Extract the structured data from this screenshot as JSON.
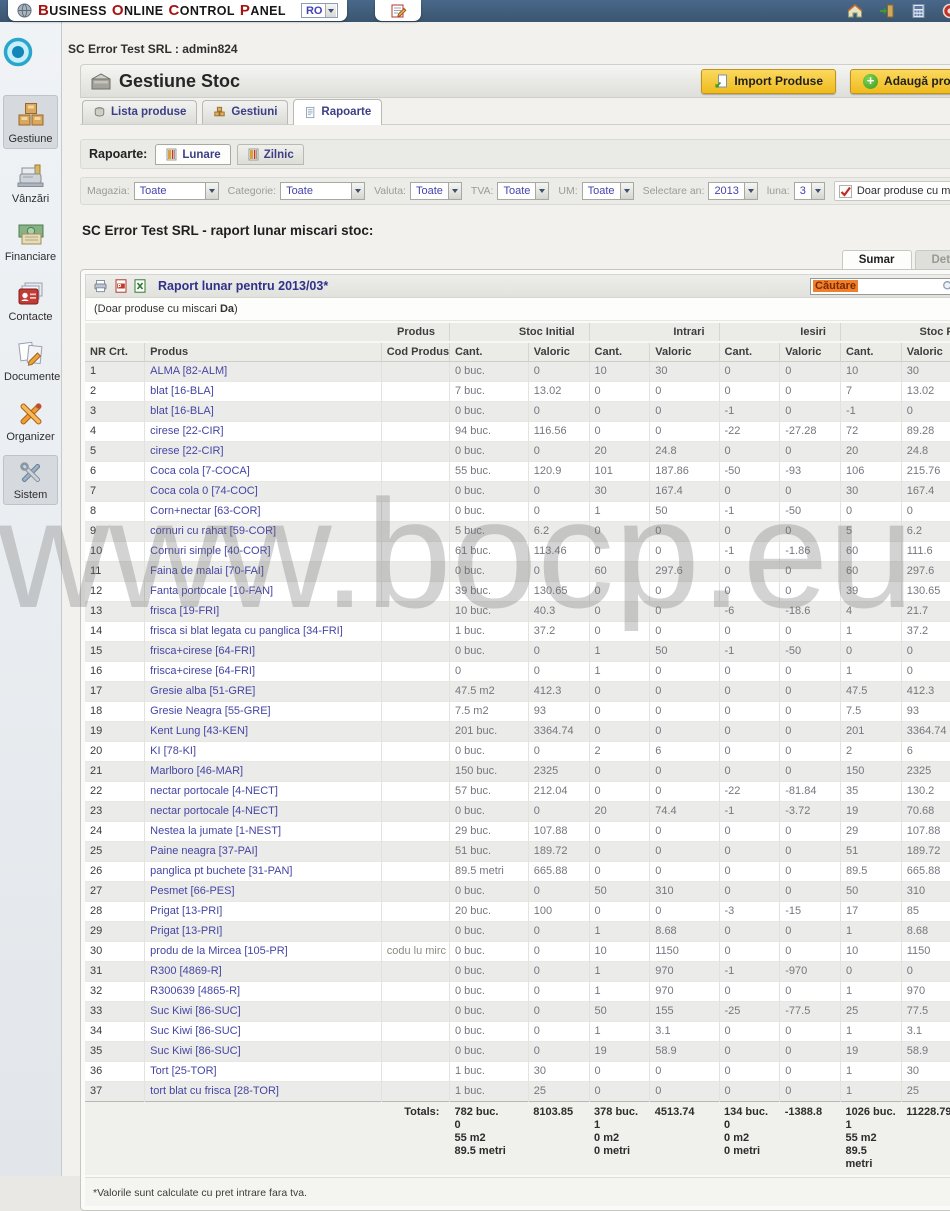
{
  "topbar": {
    "brand_words": [
      [
        "B",
        "USINESS"
      ],
      [
        "O",
        "NLINE"
      ],
      [
        "C",
        "ONTROL"
      ],
      [
        "P",
        "ANEL"
      ]
    ],
    "language": "RO",
    "icons_right": [
      "home-icon",
      "exit-icon",
      "calculator-icon",
      "power-icon"
    ]
  },
  "breadcrumb": {
    "text": "SC Error Test SRL : admin824"
  },
  "header": {
    "title": "Gestiune Stoc",
    "import_button": "Import Produse",
    "add_button": "Adaugă produs"
  },
  "tabs": [
    {
      "label": "Lista produse",
      "icon": "basket-icon",
      "active": false
    },
    {
      "label": "Gestiuni",
      "icon": "boxes-small-icon",
      "active": false
    },
    {
      "label": "Rapoarte",
      "icon": "report-doc-icon",
      "active": true
    }
  ],
  "reports_nav": {
    "label": "Rapoarte:",
    "tabs": [
      {
        "label": "Lunare",
        "icon": "report-book-icon",
        "active": true
      },
      {
        "label": "Zilnic",
        "icon": "report-book-icon",
        "active": false
      }
    ]
  },
  "filters": {
    "selects": [
      {
        "label": "Magazia:",
        "value": "Toate",
        "wide": true
      },
      {
        "label": "Categorie:",
        "value": "Toate",
        "wide": true
      },
      {
        "label": "Valuta:",
        "value": "Toate",
        "wide": false
      },
      {
        "label": "TVA:",
        "value": "Toate",
        "wide": false
      },
      {
        "label": "UM:",
        "value": "Toate",
        "wide": false
      },
      {
        "label": "Selectare an:",
        "value": "2013",
        "wide": false
      },
      {
        "label": "luna:",
        "value": "3",
        "wide": false
      }
    ],
    "checkbox_label": "Doar produse cu miscari",
    "checkbox_checked": true
  },
  "section_heading": "SC Error Test SRL - raport lunar miscari stoc:",
  "view_tabs": [
    {
      "label": "Sumar",
      "active": true
    },
    {
      "label": "Detaliat",
      "active": false
    }
  ],
  "report": {
    "title": "Raport lunar pentru 2013/03*",
    "search_value": "Căutare",
    "note_prefix": "(Doar produse cu miscari ",
    "note_bold": "Da",
    "note_suffix": ")",
    "group_headers": [
      "Produs",
      "Stoc Initial",
      "Intrari",
      "Iesiri",
      "Stoc Final"
    ],
    "columns": [
      "NR Crt.",
      "Produs",
      "Cod Produs",
      "Cant.",
      "Valoric",
      "Cant.",
      "Valoric",
      "Cant.",
      "Valoric",
      "Cant.",
      "Valoric"
    ],
    "rows": [
      [
        "1",
        "ALMA [82-ALM]",
        "",
        "0 buc.",
        "0",
        "10",
        "30",
        "0",
        "0",
        "10",
        "30"
      ],
      [
        "2",
        "blat [16-BLA]",
        "",
        "7 buc.",
        "13.02",
        "0",
        "0",
        "0",
        "0",
        "7",
        "13.02"
      ],
      [
        "3",
        "blat [16-BLA]",
        "",
        "0 buc.",
        "0",
        "0",
        "0",
        "-1",
        "0",
        "-1",
        "0"
      ],
      [
        "4",
        "cirese [22-CIR]",
        "",
        "94 buc.",
        "116.56",
        "0",
        "0",
        "-22",
        "-27.28",
        "72",
        "89.28"
      ],
      [
        "5",
        "cirese [22-CIR]",
        "",
        "0 buc.",
        "0",
        "20",
        "24.8",
        "0",
        "0",
        "20",
        "24.8"
      ],
      [
        "6",
        "Coca cola [7-COCA]",
        "",
        "55 buc.",
        "120.9",
        "101",
        "187.86",
        "-50",
        "-93",
        "106",
        "215.76"
      ],
      [
        "7",
        "Coca cola 0 [74-COC]",
        "",
        "0 buc.",
        "0",
        "30",
        "167.4",
        "0",
        "0",
        "30",
        "167.4"
      ],
      [
        "8",
        "Corn+nectar [63-COR]",
        "",
        "0 buc.",
        "0",
        "1",
        "50",
        "-1",
        "-50",
        "0",
        "0"
      ],
      [
        "9",
        "cornuri cu rahat [59-COR]",
        "",
        "5 buc.",
        "6.2",
        "0",
        "0",
        "0",
        "0",
        "5",
        "6.2"
      ],
      [
        "10",
        "Cornuri simple [40-COR]",
        "",
        "61 buc.",
        "113.46",
        "0",
        "0",
        "-1",
        "-1.86",
        "60",
        "111.6"
      ],
      [
        "11",
        "Faina de malai [70-FAI]",
        "",
        "0 buc.",
        "0",
        "60",
        "297.6",
        "0",
        "0",
        "60",
        "297.6"
      ],
      [
        "12",
        "Fanta portocale [10-FAN]",
        "",
        "39 buc.",
        "130.65",
        "0",
        "0",
        "0",
        "0",
        "39",
        "130.65"
      ],
      [
        "13",
        "frisca [19-FRI]",
        "",
        "10 buc.",
        "40.3",
        "0",
        "0",
        "-6",
        "-18.6",
        "4",
        "21.7"
      ],
      [
        "14",
        "frisca si blat legata cu panglica [34-FRI]",
        "",
        "1 buc.",
        "37.2",
        "0",
        "0",
        "0",
        "0",
        "1",
        "37.2"
      ],
      [
        "15",
        "frisca+cirese [64-FRI]",
        "",
        "0 buc.",
        "0",
        "1",
        "50",
        "-1",
        "-50",
        "0",
        "0"
      ],
      [
        "16",
        "frisca+cirese [64-FRI]",
        "",
        "0",
        "0",
        "1",
        "0",
        "0",
        "0",
        "1",
        "0"
      ],
      [
        "17",
        "Gresie alba [51-GRE]",
        "",
        "47.5 m2",
        "412.3",
        "0",
        "0",
        "0",
        "0",
        "47.5",
        "412.3"
      ],
      [
        "18",
        "Gresie Neagra [55-GRE]",
        "",
        "7.5 m2",
        "93",
        "0",
        "0",
        "0",
        "0",
        "7.5",
        "93"
      ],
      [
        "19",
        "Kent Lung [43-KEN]",
        "",
        "201 buc.",
        "3364.74",
        "0",
        "0",
        "0",
        "0",
        "201",
        "3364.74"
      ],
      [
        "20",
        "KI [78-KI]",
        "",
        "0 buc.",
        "0",
        "2",
        "6",
        "0",
        "0",
        "2",
        "6"
      ],
      [
        "21",
        "Marlboro [46-MAR]",
        "",
        "150 buc.",
        "2325",
        "0",
        "0",
        "0",
        "0",
        "150",
        "2325"
      ],
      [
        "22",
        "nectar portocale [4-NECT]",
        "",
        "57 buc.",
        "212.04",
        "0",
        "0",
        "-22",
        "-81.84",
        "35",
        "130.2"
      ],
      [
        "23",
        "nectar portocale [4-NECT]",
        "",
        "0 buc.",
        "0",
        "20",
        "74.4",
        "-1",
        "-3.72",
        "19",
        "70.68"
      ],
      [
        "24",
        "Nestea la jumate [1-NEST]",
        "",
        "29 buc.",
        "107.88",
        "0",
        "0",
        "0",
        "0",
        "29",
        "107.88"
      ],
      [
        "25",
        "Paine neagra [37-PAI]",
        "",
        "51 buc.",
        "189.72",
        "0",
        "0",
        "0",
        "0",
        "51",
        "189.72"
      ],
      [
        "26",
        "panglica pt buchete [31-PAN]",
        "",
        "89.5 metri",
        "665.88",
        "0",
        "0",
        "0",
        "0",
        "89.5",
        "665.88"
      ],
      [
        "27",
        "Pesmet [66-PES]",
        "",
        "0 buc.",
        "0",
        "50",
        "310",
        "0",
        "0",
        "50",
        "310"
      ],
      [
        "28",
        "Prigat [13-PRI]",
        "",
        "20 buc.",
        "100",
        "0",
        "0",
        "-3",
        "-15",
        "17",
        "85"
      ],
      [
        "29",
        "Prigat [13-PRI]",
        "",
        "0 buc.",
        "0",
        "1",
        "8.68",
        "0",
        "0",
        "1",
        "8.68"
      ],
      [
        "30",
        "produ de la Mircea [105-PR]",
        "codu lu mirc",
        "0 buc.",
        "0",
        "10",
        "1150",
        "0",
        "0",
        "10",
        "1150"
      ],
      [
        "31",
        "R300 [4869-R]",
        "",
        "0 buc.",
        "0",
        "1",
        "970",
        "-1",
        "-970",
        "0",
        "0"
      ],
      [
        "32",
        "R300639 [4865-R]",
        "",
        "0 buc.",
        "0",
        "1",
        "970",
        "0",
        "0",
        "1",
        "970"
      ],
      [
        "33",
        "Suc Kiwi [86-SUC]",
        "",
        "0 buc.",
        "0",
        "50",
        "155",
        "-25",
        "-77.5",
        "25",
        "77.5"
      ],
      [
        "34",
        "Suc Kiwi [86-SUC]",
        "",
        "0 buc.",
        "0",
        "1",
        "3.1",
        "0",
        "0",
        "1",
        "3.1"
      ],
      [
        "35",
        "Suc Kiwi [86-SUC]",
        "",
        "0 buc.",
        "0",
        "19",
        "58.9",
        "0",
        "0",
        "19",
        "58.9"
      ],
      [
        "36",
        "Tort [25-TOR]",
        "",
        "1 buc.",
        "30",
        "0",
        "0",
        "0",
        "0",
        "1",
        "30"
      ],
      [
        "37",
        "tort blat cu frisca [28-TOR]",
        "",
        "1 buc.",
        "25",
        "0",
        "0",
        "0",
        "0",
        "1",
        "25"
      ]
    ],
    "totals": {
      "label": "Totals:",
      "cells": [
        "782 buc.\n0\n55 m2\n89.5 metri",
        "8103.85",
        "378 buc.\n1\n0 m2\n0 metri",
        "4513.74",
        "134 buc.\n0\n0 m2\n0 metri",
        "-1388.8",
        "1026 buc.\n1\n55 m2\n89.5 metri",
        "11228.79"
      ]
    },
    "footnote": "*Valorile sunt calculate cu pret intrare fara tva."
  },
  "sidebar": {
    "items": [
      {
        "label": "Gestiune",
        "icon": "boxes-icon",
        "active": true
      },
      {
        "label": "Vânzări",
        "icon": "cash-register-icon",
        "active": false
      },
      {
        "label": "Financiare",
        "icon": "money-icon",
        "active": false
      },
      {
        "label": "Contacte",
        "icon": "contacts-icon",
        "active": false
      },
      {
        "label": "Documente",
        "icon": "documents-icon",
        "active": false
      },
      {
        "label": "Organizer",
        "icon": "organizer-icon",
        "active": false
      },
      {
        "label": "Sistem",
        "icon": "tools-icon",
        "active": true
      }
    ]
  },
  "watermark": "www.bocp.eu",
  "colors": {
    "topbar_blue": "#3d5a78",
    "accent_yellow": "#f3c126",
    "link_blue": "#4545a5",
    "highlight_orange": "#f07f2b",
    "check_red": "#c22b1e"
  }
}
